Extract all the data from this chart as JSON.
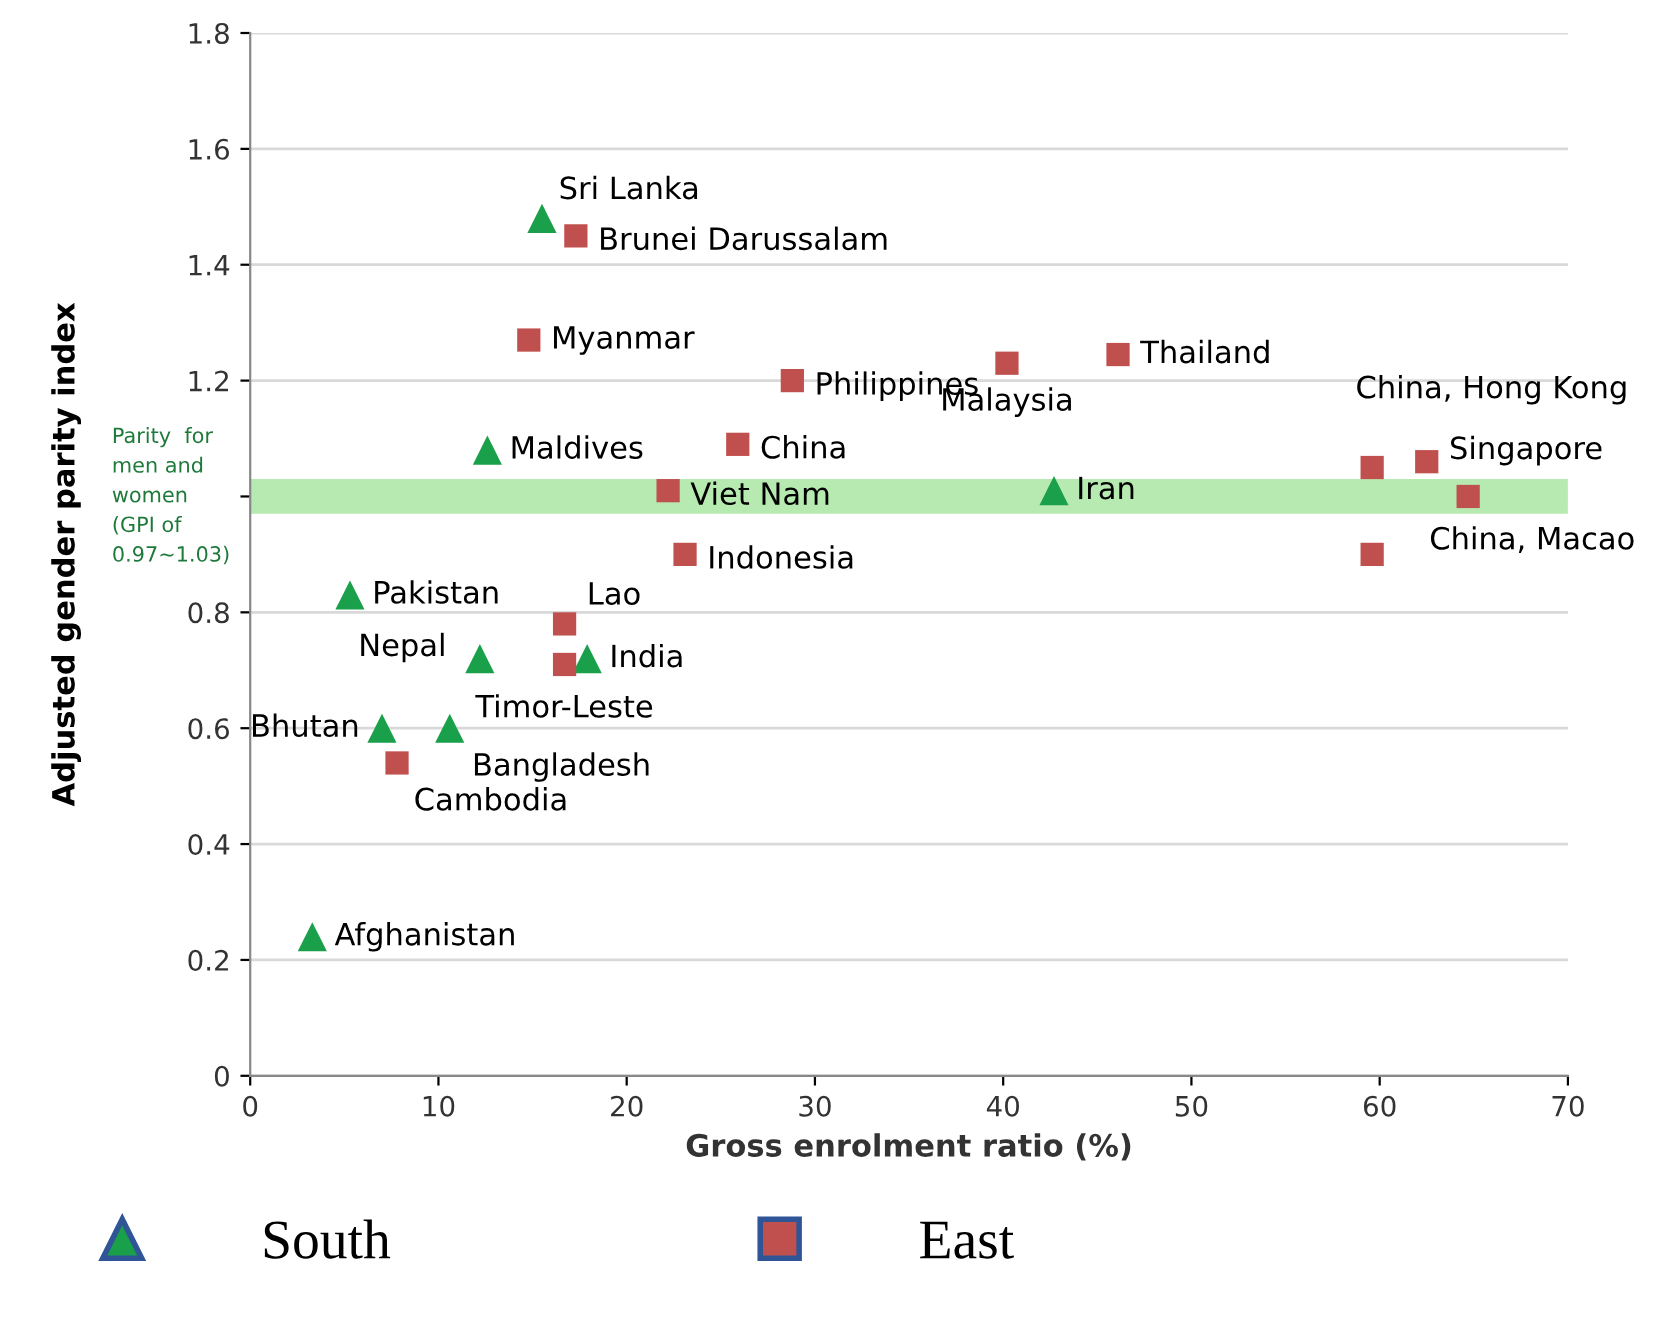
{
  "chart_data": {
    "type": "scatter",
    "xlabel": "Gross enrolment ratio (%)",
    "ylabel": "Adjusted gender parity index",
    "series": [
      {
        "name": "South",
        "color": "#1aa04a",
        "marker": "triangle",
        "x": [
          15.5,
          12.6,
          42.7,
          5.3,
          12.2,
          17.9,
          7.0,
          10.6,
          3.3
        ],
        "values": [
          1.48,
          1.08,
          1.01,
          0.83,
          0.72,
          0.72,
          0.6,
          0.6,
          0.24
        ]
      },
      {
        "name": "East",
        "color": "#c0504d",
        "marker": "square",
        "x": [
          17.3,
          14.8,
          28.8,
          40.2,
          46.1,
          25.9,
          22.2,
          23.1,
          16.7,
          16.7,
          7.8,
          59.6,
          62.5,
          64.7,
          59.6
        ],
        "values": [
          1.45,
          1.27,
          1.2,
          1.23,
          1.245,
          1.09,
          1.01,
          0.9,
          0.78,
          0.71,
          0.54,
          1.05,
          1.06,
          1.0,
          0.9
        ]
      }
    ],
    "annotations": [
      {
        "text": "Sri Lanka",
        "x": 15.5,
        "y": 1.48
      },
      {
        "text": "Maldives",
        "x": 12.6,
        "y": 1.08
      },
      {
        "text": "Iran",
        "x": 42.7,
        "y": 1.01
      },
      {
        "text": "Pakistan",
        "x": 5.3,
        "y": 0.83
      },
      {
        "text": "Nepal",
        "x": 12.2,
        "y": 0.72
      },
      {
        "text": "India",
        "x": 17.9,
        "y": 0.72
      },
      {
        "text": "Bhutan",
        "x": 7.0,
        "y": 0.6
      },
      {
        "text": "Bangladesh",
        "x": 10.6,
        "y": 0.6
      },
      {
        "text": "Afghanistan",
        "x": 3.3,
        "y": 0.24
      },
      {
        "text": "Brunei Darussalam",
        "x": 17.3,
        "y": 1.45
      },
      {
        "text": "Myanmar",
        "x": 14.8,
        "y": 1.27
      },
      {
        "text": "Philippines",
        "x": 28.8,
        "y": 1.2
      },
      {
        "text": "Malaysia",
        "x": 40.2,
        "y": 1.23
      },
      {
        "text": "Thailand",
        "x": 46.1,
        "y": 1.245
      },
      {
        "text": "China",
        "x": 25.9,
        "y": 1.09
      },
      {
        "text": "Viet Nam",
        "x": 22.2,
        "y": 1.01
      },
      {
        "text": "Indonesia",
        "x": 23.1,
        "y": 0.9
      },
      {
        "text": "Lao",
        "x": 16.7,
        "y": 0.78
      },
      {
        "text": "Timor-Leste",
        "x": 16.7,
        "y": 0.71
      },
      {
        "text": "Cambodia",
        "x": 7.8,
        "y": 0.54
      },
      {
        "text": "China, Hong Kong",
        "x": 59.6,
        "y": 1.05
      },
      {
        "text": "Singapore",
        "x": 62.5,
        "y": 1.06
      },
      {
        "text": "China, Macao",
        "x": 64.7,
        "y": 1.0
      }
    ],
    "bands": [
      {
        "axis": "y",
        "from": 0.97,
        "to": 1.03,
        "label": "Parity  for men and women (GPI of 0.97~1.03)",
        "color": "#b6eab0"
      }
    ],
    "xlim": [
      0,
      70
    ],
    "xticks": [
      0,
      10,
      20,
      30,
      40,
      50,
      60,
      70
    ],
    "ylim": [
      0,
      1.8
    ],
    "yticks": [
      0,
      0.2,
      0.4,
      0.6,
      0.8,
      {
        "value": 1.0,
        "label": null
      },
      1.2,
      1.4,
      1.6,
      1.8
    ],
    "grid": "y",
    "legend": "bottom"
  }
}
